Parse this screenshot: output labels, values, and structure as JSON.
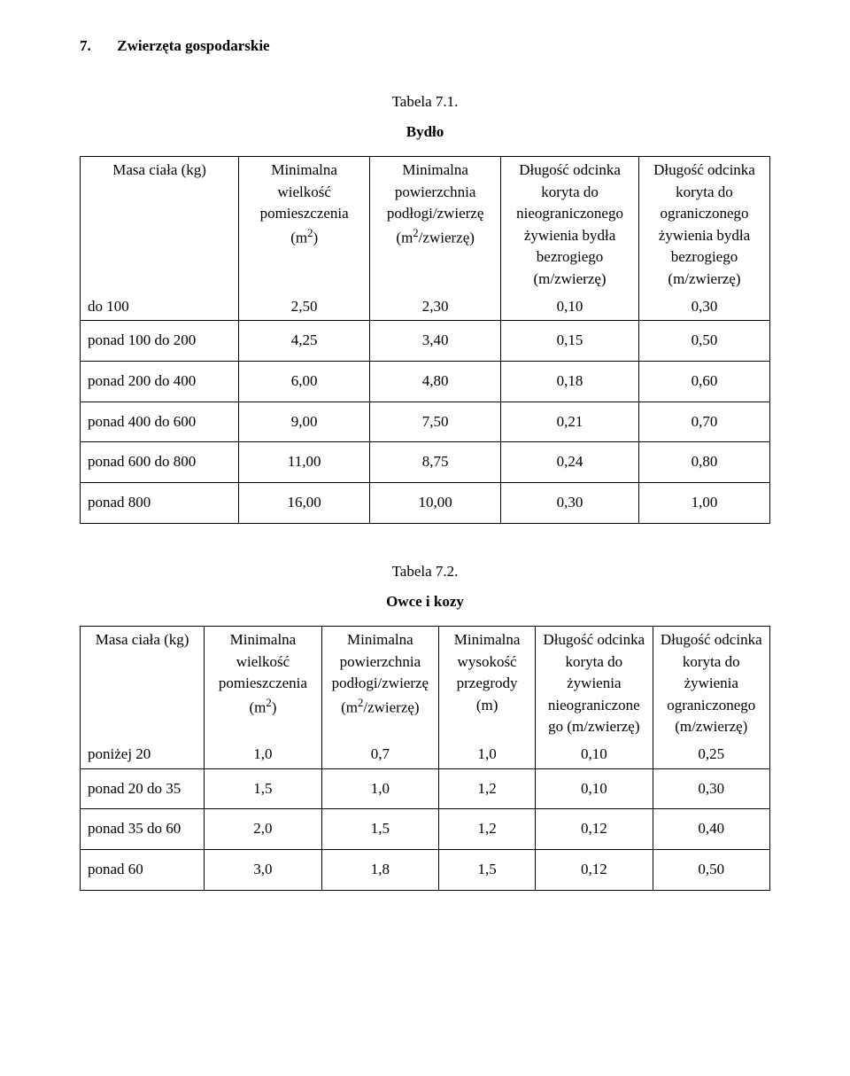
{
  "section": {
    "number": "7.",
    "title": "Zwierzęta gospodarskie"
  },
  "table1": {
    "caption_line": "Tabela 7.1.",
    "title": "Bydło",
    "columns": [
      "Masa ciała (kg)",
      "Minimalna wielkość pomieszczenia (m²)",
      "Minimalna powierzchnia podłogi/zwierzę (m²/zwierzę)",
      "Długość odcinka koryta do nieograniczonego żywienia bydła bezrogiego (m/zwierzę)",
      "Długość odcinka koryta do ograniczonego żywienia bydła bezrogiego (m/zwierzę)"
    ],
    "first_row": {
      "label": "do 100",
      "values": [
        "2,50",
        "2,30",
        "0,10",
        "0,30"
      ]
    },
    "rows": [
      {
        "label": "ponad 100 do 200",
        "values": [
          "4,25",
          "3,40",
          "0,15",
          "0,50"
        ]
      },
      {
        "label": "ponad 200 do 400",
        "values": [
          "6,00",
          "4,80",
          "0,18",
          "0,60"
        ]
      },
      {
        "label": "ponad 400 do 600",
        "values": [
          "9,00",
          "7,50",
          "0,21",
          "0,70"
        ]
      },
      {
        "label": "ponad 600 do 800",
        "values": [
          "11,00",
          "8,75",
          "0,24",
          "0,80"
        ]
      },
      {
        "label": "ponad 800",
        "values": [
          "16,00",
          "10,00",
          "0,30",
          "1,00"
        ]
      }
    ]
  },
  "table2": {
    "caption_line": "Tabela 7.2.",
    "title": "Owce i kozy",
    "columns": [
      "Masa ciała (kg)",
      "Minimalna wielkość pomieszczenia (m²)",
      "Minimalna powierzchnia podłogi/zwierzę (m²/zwierzę)",
      "Minimalna wysokość przegrody (m)",
      "Długość odcinka koryta do żywienia nieograniczone go (m/zwierzę)",
      "Długość odcinka koryta do żywienia ograniczonego (m/zwierzę)"
    ],
    "first_row": {
      "label": "poniżej 20",
      "values": [
        "1,0",
        "0,7",
        "1,0",
        "0,10",
        "0,25"
      ]
    },
    "rows": [
      {
        "label": "ponad 20 do 35",
        "values": [
          "1,5",
          "1,0",
          "1,2",
          "0,10",
          "0,30"
        ]
      },
      {
        "label": "ponad 35 do 60",
        "values": [
          "2,0",
          "1,5",
          "1,2",
          "0,12",
          "0,40"
        ]
      },
      {
        "label": "ponad 60",
        "values": [
          "3,0",
          "1,8",
          "1,5",
          "0,12",
          "0,50"
        ]
      }
    ]
  }
}
